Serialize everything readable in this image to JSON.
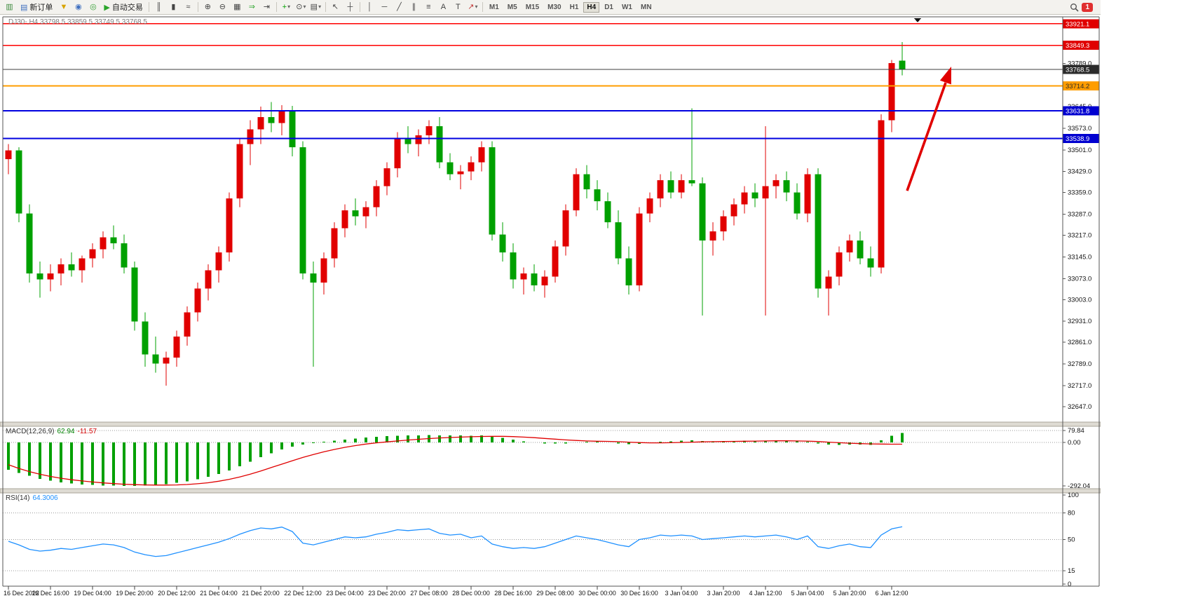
{
  "toolbar": {
    "items": [
      {
        "t": "icon",
        "name": "new-chart-icon",
        "g": "▥",
        "c": "#3c8a3c"
      },
      {
        "t": "btn",
        "name": "new-order-button",
        "g": "▤",
        "c": "#3f6fbf",
        "label": "新订单"
      },
      {
        "t": "icon",
        "name": "funnel-icon",
        "g": "▼",
        "c": "#d8a400"
      },
      {
        "t": "icon",
        "name": "profiles-icon",
        "g": "◉",
        "c": "#3f6fbf"
      },
      {
        "t": "icon",
        "name": "signals-icon",
        "g": "◎",
        "c": "#35a035"
      },
      {
        "t": "btn",
        "name": "auto-trading-button",
        "g": "▶",
        "c": "#2ba52b",
        "label": "自动交易"
      },
      {
        "t": "sep"
      },
      {
        "t": "icon",
        "name": "bar-chart-icon",
        "g": "║",
        "c": "#444444"
      },
      {
        "t": "icon",
        "name": "candlestick-icon",
        "g": "▮",
        "c": "#444444"
      },
      {
        "t": "icon",
        "name": "line-chart-icon",
        "g": "≈",
        "c": "#444444"
      },
      {
        "t": "sep"
      },
      {
        "t": "icon",
        "name": "zoom-in-icon",
        "g": "⊕",
        "c": "#444444"
      },
      {
        "t": "icon",
        "name": "zoom-out-icon",
        "g": "⊖",
        "c": "#444444"
      },
      {
        "t": "icon",
        "name": "tile-windows-icon",
        "g": "▦",
        "c": "#444444"
      },
      {
        "t": "icon",
        "name": "auto-scroll-icon",
        "g": "⇒",
        "c": "#2ba52b"
      },
      {
        "t": "icon",
        "name": "chart-shift-icon",
        "g": "⇥",
        "c": "#444444"
      },
      {
        "t": "sep"
      },
      {
        "t": "icon",
        "name": "indicators-icon",
        "g": "+",
        "c": "#00a000",
        "caret": true
      },
      {
        "t": "icon",
        "name": "periods-icon",
        "g": "⊙",
        "c": "#444444",
        "caret": true
      },
      {
        "t": "icon",
        "name": "templates-icon",
        "g": "▤",
        "c": "#444444",
        "caret": true
      },
      {
        "t": "sep"
      },
      {
        "t": "icon",
        "name": "cursor-icon",
        "g": "↖",
        "c": "#444444"
      },
      {
        "t": "icon",
        "name": "crosshair-icon",
        "g": "┼",
        "c": "#444444"
      },
      {
        "t": "sep"
      },
      {
        "t": "icon",
        "name": "vertical-line-icon",
        "g": "│",
        "c": "#444444"
      },
      {
        "t": "icon",
        "name": "horizontal-line-icon",
        "g": "─",
        "c": "#444444"
      },
      {
        "t": "icon",
        "name": "trendline-icon",
        "g": "╱",
        "c": "#444444"
      },
      {
        "t": "icon",
        "name": "equidistant-channel-icon",
        "g": "∥",
        "c": "#444444"
      },
      {
        "t": "icon",
        "name": "fibonacci-icon",
        "g": "≡",
        "c": "#444444"
      },
      {
        "t": "icon",
        "name": "text-icon",
        "g": "A",
        "c": "#444444"
      },
      {
        "t": "icon",
        "name": "text-label-icon",
        "g": "T",
        "c": "#444444"
      },
      {
        "t": "icon",
        "name": "arrows-icon",
        "g": "↗",
        "c": "#c23a3a",
        "caret": true
      },
      {
        "t": "sep"
      },
      {
        "t": "tf",
        "name": "timeframe-m1",
        "label": "M1"
      },
      {
        "t": "tf",
        "name": "timeframe-m5",
        "label": "M5"
      },
      {
        "t": "tf",
        "name": "timeframe-m15",
        "label": "M15"
      },
      {
        "t": "tf",
        "name": "timeframe-m30",
        "label": "M30"
      },
      {
        "t": "tf",
        "name": "timeframe-h1",
        "label": "H1"
      },
      {
        "t": "tf",
        "name": "timeframe-h4",
        "label": "H4",
        "active": true
      },
      {
        "t": "tf",
        "name": "timeframe-d1",
        "label": "D1"
      },
      {
        "t": "tf",
        "name": "timeframe-w1",
        "label": "W1"
      },
      {
        "t": "tf",
        "name": "timeframe-mn",
        "label": "MN"
      },
      {
        "t": "spacer"
      },
      {
        "t": "search",
        "name": "search-icon"
      },
      {
        "t": "badge",
        "name": "notification-badge",
        "label": "1"
      }
    ]
  },
  "chart_data": {
    "type": "candlestick",
    "symbol": "DJ30-",
    "timeframe": "H4",
    "title": "DJ30-,H4 33798.5 33859.5 33749.5 33768.5",
    "current_bar": {
      "open": 33798.5,
      "high": 33859.5,
      "low": 33749.5,
      "close": 33768.5
    },
    "up_color": "#e10000",
    "down_color": "#00a000",
    "candles_ohlc": [
      [
        33470,
        33520,
        33420,
        33500
      ],
      [
        33500,
        33510,
        33260,
        33290
      ],
      [
        33290,
        33320,
        33060,
        33090
      ],
      [
        33090,
        33130,
        33010,
        33070
      ],
      [
        33070,
        33120,
        33030,
        33090
      ],
      [
        33090,
        33140,
        33050,
        33120
      ],
      [
        33120,
        33160,
        33080,
        33100
      ],
      [
        33100,
        33150,
        33060,
        33140
      ],
      [
        33140,
        33190,
        33110,
        33170
      ],
      [
        33170,
        33230,
        33140,
        33210
      ],
      [
        33210,
        33250,
        33170,
        33190
      ],
      [
        33190,
        33220,
        33090,
        33110
      ],
      [
        33110,
        33130,
        32900,
        32930
      ],
      [
        32930,
        32960,
        32780,
        32820
      ],
      [
        32820,
        32880,
        32760,
        32790
      ],
      [
        32790,
        32830,
        32717,
        32810
      ],
      [
        32810,
        32900,
        32780,
        32880
      ],
      [
        32880,
        32980,
        32850,
        32960
      ],
      [
        32960,
        33060,
        32930,
        33040
      ],
      [
        33040,
        33120,
        33000,
        33100
      ],
      [
        33100,
        33180,
        33060,
        33160
      ],
      [
        33160,
        33360,
        33130,
        33340
      ],
      [
        33340,
        33540,
        33310,
        33520
      ],
      [
        33520,
        33600,
        33450,
        33570
      ],
      [
        33570,
        33645,
        33520,
        33610
      ],
      [
        33610,
        33660,
        33560,
        33590
      ],
      [
        33590,
        33650,
        33550,
        33630
      ],
      [
        33630,
        33648,
        33480,
        33510
      ],
      [
        33510,
        33530,
        33070,
        33090
      ],
      [
        33090,
        33130,
        32780,
        33060
      ],
      [
        33060,
        33160,
        33020,
        33140
      ],
      [
        33140,
        33260,
        33110,
        33240
      ],
      [
        33240,
        33320,
        33210,
        33300
      ],
      [
        33300,
        33340,
        33250,
        33280
      ],
      [
        33280,
        33330,
        33240,
        33310
      ],
      [
        33310,
        33400,
        33280,
        33380
      ],
      [
        33380,
        33460,
        33350,
        33440
      ],
      [
        33440,
        33560,
        33410,
        33540
      ],
      [
        33540,
        33580,
        33490,
        33520
      ],
      [
        33520,
        33570,
        33480,
        33550
      ],
      [
        33550,
        33600,
        33520,
        33580
      ],
      [
        33580,
        33610,
        33440,
        33460
      ],
      [
        33460,
        33490,
        33400,
        33420
      ],
      [
        33420,
        33450,
        33370,
        33430
      ],
      [
        33430,
        33480,
        33400,
        33460
      ],
      [
        33460,
        33530,
        33430,
        33510
      ],
      [
        33510,
        33530,
        33200,
        33220
      ],
      [
        33220,
        33260,
        33130,
        33160
      ],
      [
        33160,
        33190,
        33040,
        33070
      ],
      [
        33070,
        33110,
        33020,
        33090
      ],
      [
        33090,
        33120,
        33030,
        33050
      ],
      [
        33050,
        33100,
        33010,
        33080
      ],
      [
        33080,
        33200,
        33060,
        33180
      ],
      [
        33180,
        33320,
        33150,
        33300
      ],
      [
        33300,
        33440,
        33280,
        33420
      ],
      [
        33420,
        33450,
        33340,
        33370
      ],
      [
        33370,
        33400,
        33300,
        33330
      ],
      [
        33330,
        33360,
        33240,
        33260
      ],
      [
        33260,
        33300,
        33120,
        33140
      ],
      [
        33140,
        33180,
        33020,
        33050
      ],
      [
        33050,
        33310,
        33030,
        33290
      ],
      [
        33290,
        33360,
        33260,
        33340
      ],
      [
        33340,
        33420,
        33310,
        33400
      ],
      [
        33400,
        33430,
        33340,
        33360
      ],
      [
        33360,
        33420,
        33340,
        33400
      ],
      [
        33400,
        33640,
        33380,
        33390
      ],
      [
        33390,
        33410,
        32950,
        33200
      ],
      [
        33200,
        33260,
        33150,
        33230
      ],
      [
        33230,
        33300,
        33200,
        33280
      ],
      [
        33280,
        33340,
        33250,
        33320
      ],
      [
        33320,
        33380,
        33290,
        33360
      ],
      [
        33360,
        33390,
        33310,
        33340
      ],
      [
        33340,
        33580,
        32950,
        33380
      ],
      [
        33380,
        33420,
        33340,
        33400
      ],
      [
        33400,
        33430,
        33330,
        33360
      ],
      [
        33360,
        33390,
        33270,
        33290
      ],
      [
        33290,
        33440,
        33260,
        33420
      ],
      [
        33420,
        33440,
        33010,
        33040
      ],
      [
        33040,
        33100,
        32950,
        33080
      ],
      [
        33080,
        33180,
        33050,
        33160
      ],
      [
        33160,
        33220,
        33130,
        33200
      ],
      [
        33200,
        33230,
        33120,
        33140
      ],
      [
        33140,
        33180,
        33080,
        33110
      ],
      [
        33110,
        33620,
        33090,
        33600
      ],
      [
        33600,
        33800,
        33560,
        33790
      ],
      [
        33798.5,
        33859.5,
        33749.5,
        33768.5
      ]
    ],
    "x_labels": [
      "16 Dec 2022",
      "16 Dec 16:00",
      "19 Dec 04:00",
      "19 Dec 20:00",
      "20 Dec 12:00",
      "21 Dec 04:00",
      "21 Dec 20:00",
      "22 Dec 12:00",
      "23 Dec 04:00",
      "23 Dec 20:00",
      "27 Dec 08:00",
      "28 Dec 00:00",
      "28 Dec 16:00",
      "29 Dec 08:00",
      "30 Dec 00:00",
      "30 Dec 16:00",
      "3 Jan 04:00",
      "3 Jan 20:00",
      "4 Jan 12:00",
      "5 Jan 04:00",
      "5 Jan 20:00",
      "6 Jan 12:00"
    ],
    "x_label_every": 4,
    "price_scale_ticks": [
      33789,
      33717,
      33645,
      33573,
      33501,
      33429,
      33359,
      33287,
      33217,
      33145,
      33073,
      33003,
      32931,
      32861,
      32789,
      32717,
      32647
    ],
    "hlines": [
      {
        "price": 33921.1,
        "label": "33921.1",
        "line": "#ff0000",
        "bg": "#e00000",
        "fg": "#ffffff",
        "w": 1.5,
        "name": "resistance-line-33921"
      },
      {
        "price": 33849.3,
        "label": "33849.3",
        "line": "#ff0000",
        "bg": "#e00000",
        "fg": "#ffffff",
        "w": 1.5,
        "name": "resistance-line-33849"
      },
      {
        "price": 33768.5,
        "label": "33768.5",
        "line": "#3c3c3c",
        "bg": "#2b2b2b",
        "fg": "#ffffff",
        "w": 1,
        "name": "current-price-line"
      },
      {
        "price": 33714.2,
        "label": "33714.2",
        "line": "#ff9d00",
        "bg": "#ff9d00",
        "fg": "#2b2b2b",
        "w": 2,
        "name": "support-line-orange-33714"
      },
      {
        "price": 33631.8,
        "label": "33631.8",
        "line": "#0000e0",
        "bg": "#0000d0",
        "fg": "#ffffff",
        "w": 2,
        "name": "support-line-blue-33631"
      },
      {
        "price": 33538.9,
        "label": "33538.9",
        "line": "#0000e0",
        "bg": "#0000d0",
        "fg": "#ffffff",
        "w": 2,
        "name": "support-line-blue-33538"
      }
    ],
    "arrow_annotation": {
      "color": "#e00000"
    },
    "macd": {
      "name": "MACD(12,26,9)",
      "value_main": "62.94",
      "value_signal": "-11.57",
      "hist_color": "#00a000",
      "signal_color": "#e00000",
      "scale_labels": [
        "79.84",
        "0.00",
        "-292.04"
      ],
      "scale_values": [
        79.84,
        0,
        -292.04
      ],
      "level_lines": [
        79.84,
        0
      ],
      "hist": [
        -185,
        -205,
        -225,
        -245,
        -258,
        -268,
        -276,
        -282,
        -286,
        -289,
        -291,
        -292,
        -292,
        -290,
        -286,
        -280,
        -272,
        -262,
        -248,
        -232,
        -212,
        -188,
        -160,
        -130,
        -100,
        -72,
        -48,
        -28,
        -14,
        -4,
        4,
        12,
        20,
        27,
        33,
        38,
        42,
        45,
        47,
        48,
        49,
        48,
        47,
        46,
        45,
        46,
        40,
        30,
        18,
        8,
        0,
        -6,
        -8,
        -6,
        0,
        4,
        4,
        0,
        -6,
        -12,
        -10,
        -4,
        4,
        8,
        12,
        14,
        10,
        8,
        8,
        10,
        12,
        12,
        12,
        12,
        10,
        6,
        4,
        -6,
        -14,
        -16,
        -14,
        -14,
        -16,
        15,
        45,
        62.94
      ],
      "signal": [
        -150,
        -175,
        -196,
        -214,
        -229,
        -241,
        -251,
        -259,
        -266,
        -272,
        -277,
        -281,
        -284,
        -286,
        -287,
        -287,
        -286,
        -283,
        -278,
        -271,
        -261,
        -248,
        -232,
        -213,
        -192,
        -169,
        -146,
        -123,
        -101,
        -81,
        -63,
        -47,
        -33,
        -21,
        -11,
        -3,
        4,
        10,
        16,
        21,
        26,
        30,
        33,
        36,
        38,
        40,
        41,
        41,
        39,
        36,
        32,
        27,
        22,
        17,
        13,
        10,
        8,
        7,
        5,
        2,
        -1,
        -3,
        -3,
        -2,
        0,
        2,
        4,
        5,
        6,
        7,
        8,
        9,
        10,
        11,
        11,
        10,
        9,
        6,
        2,
        -2,
        -5,
        -8,
        -10,
        -11,
        -12,
        -11.57
      ]
    },
    "rsi": {
      "name": "RSI(14)",
      "value": "64.3006",
      "line_color": "#1e90ff",
      "scale_labels": [
        "100",
        "80",
        "50",
        "15",
        "0"
      ],
      "scale_values": [
        100,
        80,
        50,
        15,
        0
      ],
      "level_lines": [
        80,
        50,
        15
      ],
      "values": [
        48,
        44,
        39,
        37,
        38,
        40,
        39,
        41,
        43,
        45,
        44,
        41,
        36,
        33,
        31,
        32,
        35,
        38,
        41,
        44,
        47,
        51,
        56,
        60,
        63,
        62,
        64,
        59,
        46,
        44,
        47,
        50,
        53,
        52,
        53,
        56,
        58,
        61,
        60,
        61,
        62,
        57,
        55,
        56,
        52,
        54,
        45,
        42,
        40,
        41,
        40,
        42,
        46,
        50,
        54,
        52,
        50,
        47,
        44,
        42,
        50,
        52,
        55,
        54,
        55,
        54,
        50,
        51,
        52,
        53,
        54,
        53,
        54,
        55,
        53,
        50,
        54,
        42,
        40,
        43,
        45,
        42,
        41,
        55,
        62,
        64.3
      ]
    }
  }
}
